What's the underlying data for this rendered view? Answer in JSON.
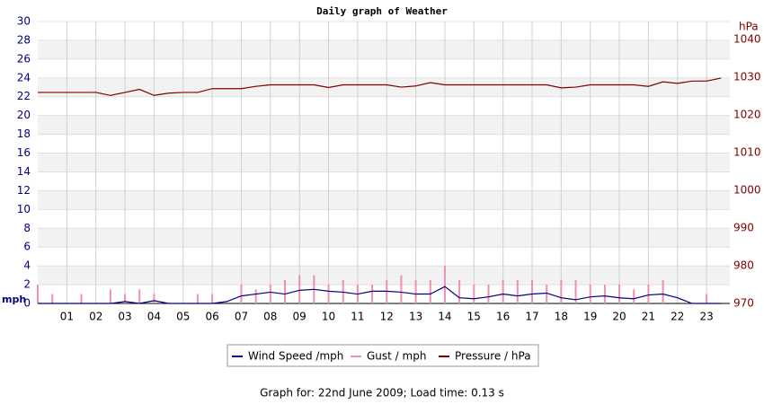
{
  "chart_data": {
    "type": "line",
    "title": "Daily graph of Weather",
    "y_label": "mph",
    "y2_label": "hPa",
    "footer": "Graph for: 22nd June 2009; Load time: 0.13 s",
    "xlim": [
      0,
      23.8
    ],
    "xticks": [
      {
        "value": 1,
        "label": "01"
      },
      {
        "value": 2,
        "label": "02"
      },
      {
        "value": 3,
        "label": "03"
      },
      {
        "value": 4,
        "label": "04"
      },
      {
        "value": 5,
        "label": "05"
      },
      {
        "value": 6,
        "label": "06"
      },
      {
        "value": 7,
        "label": "07"
      },
      {
        "value": 8,
        "label": "08"
      },
      {
        "value": 9,
        "label": "09"
      },
      {
        "value": 10,
        "label": "10"
      },
      {
        "value": 11,
        "label": "11"
      },
      {
        "value": 12,
        "label": "12"
      },
      {
        "value": 13,
        "label": "13"
      },
      {
        "value": 14,
        "label": "14"
      },
      {
        "value": 15,
        "label": "15"
      },
      {
        "value": 16,
        "label": "16"
      },
      {
        "value": 17,
        "label": "17"
      },
      {
        "value": 18,
        "label": "18"
      },
      {
        "value": 19,
        "label": "19"
      },
      {
        "value": 20,
        "label": "20"
      },
      {
        "value": 21,
        "label": "21"
      },
      {
        "value": 22,
        "label": "22"
      },
      {
        "value": 23,
        "label": "23"
      }
    ],
    "ylim": [
      0,
      30
    ],
    "yticks": [
      0,
      2,
      4,
      6,
      8,
      10,
      12,
      14,
      16,
      18,
      20,
      22,
      24,
      26,
      28,
      30
    ],
    "y2lim": [
      970,
      1044.8
    ],
    "y2ticks": [
      970,
      980,
      990,
      1000,
      1010,
      1020,
      1030,
      1040
    ],
    "grid": true,
    "x": [
      0,
      0.5,
      1,
      1.5,
      2,
      2.5,
      3,
      3.5,
      4,
      4.5,
      5,
      5.5,
      6,
      6.5,
      7,
      7.5,
      8,
      8.5,
      9,
      9.5,
      10,
      10.5,
      11,
      11.5,
      12,
      12.5,
      13,
      13.5,
      14,
      14.5,
      15,
      15.5,
      16,
      16.5,
      17,
      17.5,
      18,
      18.5,
      19,
      19.5,
      20,
      20.5,
      21,
      21.5,
      22,
      22.5,
      23,
      23.5
    ],
    "series": [
      {
        "name": "Wind Speed /mph",
        "color": "#000080",
        "style": "line",
        "values": [
          0,
          0,
          0,
          0,
          0,
          0,
          0.2,
          0,
          0.3,
          0,
          0,
          0,
          0,
          0.2,
          0.8,
          1,
          1.2,
          1,
          1.4,
          1.5,
          1.3,
          1.2,
          1,
          1.3,
          1.3,
          1.2,
          1,
          1,
          1.8,
          0.6,
          0.5,
          0.7,
          1,
          0.8,
          1,
          1.1,
          0.6,
          0.4,
          0.7,
          0.8,
          0.6,
          0.5,
          0.9,
          1,
          0.6,
          0,
          0,
          0
        ]
      },
      {
        "name": "Gust / mph",
        "color": "#f48cb6",
        "style": "spike",
        "values": [
          2,
          1,
          0,
          1,
          0,
          1.5,
          1,
          1.5,
          1,
          0,
          0,
          1,
          1,
          0,
          2,
          1.5,
          2,
          2.5,
          3,
          3,
          2,
          2.5,
          2,
          2,
          2.5,
          3,
          2.5,
          2.5,
          4,
          2.5,
          2,
          2,
          2.5,
          2.5,
          2.5,
          2,
          2.5,
          2.5,
          2,
          2,
          2,
          1.5,
          2,
          2.5,
          0,
          0,
          1,
          0
        ]
      },
      {
        "name": "Pressure / hPa",
        "color": "#800000",
        "style": "line",
        "axis": "y2",
        "values": [
          1026,
          1026,
          1026,
          1026,
          1026,
          1025.2,
          1026,
          1026.8,
          1025.2,
          1025.8,
          1026,
          1026,
          1027,
          1027,
          1027,
          1027.6,
          1028,
          1028,
          1028,
          1028,
          1027.3,
          1028,
          1028,
          1028,
          1028,
          1027.4,
          1027.7,
          1028.6,
          1028,
          1028,
          1028,
          1028,
          1028,
          1028,
          1028,
          1028,
          1027.2,
          1027.4,
          1028,
          1028,
          1028,
          1028,
          1027.6,
          1028.8,
          1028.4,
          1029,
          1029,
          1029.8
        ]
      }
    ]
  }
}
